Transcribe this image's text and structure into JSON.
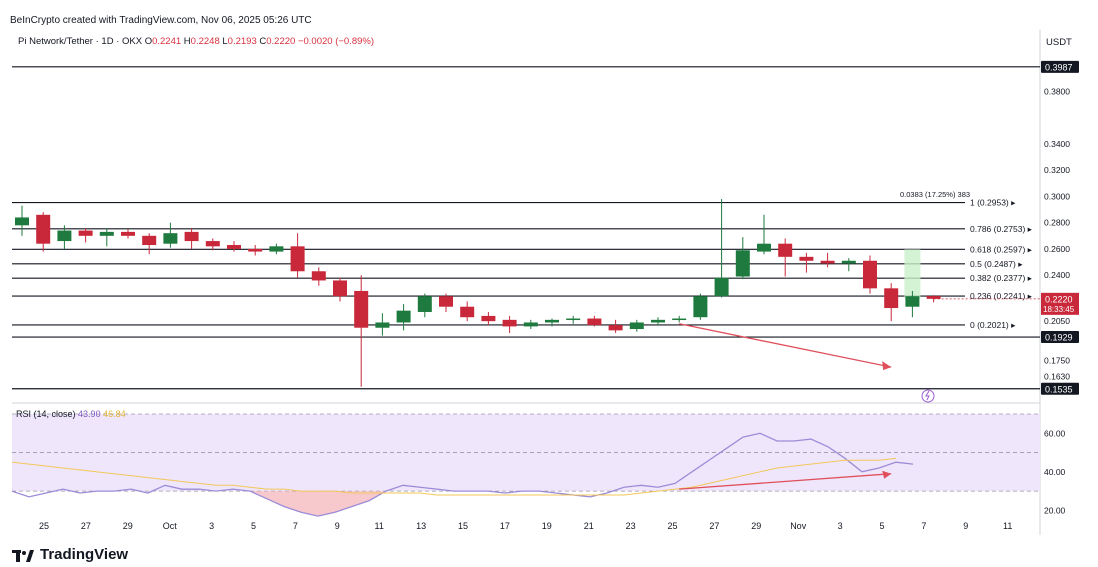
{
  "header": {
    "credit": "BeInCrypto created with TradingView.com, Nov 06, 2025 05:26 UTC",
    "symbol": "Pi Network/Tether · 1D · OKX",
    "ohlc": {
      "o_label": "O",
      "o": "0.2241",
      "h_label": "H",
      "h": "0.2248",
      "l_label": "L",
      "l": "0.2193",
      "c_label": "C",
      "c": "0.2220",
      "change": "−0.0020 (−0.89%)"
    },
    "currency": "USDT"
  },
  "brand": {
    "name": "TradingView"
  },
  "colors": {
    "up": "#1e7a3e",
    "down": "#c8283a",
    "rsi": "#9c8cd8",
    "rsi_ma": "#f3c75a",
    "arrow": "#e0505c",
    "band": "#efe6fb"
  },
  "chart_data": [
    {
      "type": "candlestick",
      "title": "Pi Network/Tether · 1D · OKX",
      "ylim": [
        0.148,
        0.41
      ],
      "x_ticks": [
        "25",
        "27",
        "29",
        "Oct",
        "3",
        "5",
        "7",
        "9",
        "11",
        "13",
        "15",
        "17",
        "19",
        "21",
        "23",
        "25",
        "27",
        "29",
        "Nov",
        "3",
        "5",
        "7",
        "9",
        "11"
      ],
      "y_ticks": [
        "0.3800",
        "0.3400",
        "0.3200",
        "0.3000",
        "0.2800",
        "0.2600",
        "0.2400",
        "0.2050",
        "0.1750",
        "0.1630"
      ],
      "price_badges": [
        {
          "label": "0.3987",
          "value": 0.3987
        },
        {
          "label": "0.1929",
          "value": 0.1929
        },
        {
          "label": "0.1535",
          "value": 0.1535
        }
      ],
      "current_price": {
        "label": "0.2220",
        "countdown": "18:33:45",
        "value": 0.222
      },
      "fib_levels": [
        {
          "label": "1 (0.2953)",
          "value": 0.2953
        },
        {
          "label": "0.786 (0.2753)",
          "value": 0.2753
        },
        {
          "label": "0.618 (0.2597)",
          "value": 0.2597
        },
        {
          "label": "0.5 (0.2487)",
          "value": 0.2487
        },
        {
          "label": "0.382 (0.2377)",
          "value": 0.2377
        },
        {
          "label": "0.236 (0.2241)",
          "value": 0.2241
        },
        {
          "label": "0 (0.2021)",
          "value": 0.2021
        }
      ],
      "measure_label": "0.0383 (17.25%) 383",
      "candles": [
        {
          "o": 0.278,
          "h": 0.293,
          "l": 0.27,
          "c": 0.284
        },
        {
          "o": 0.286,
          "h": 0.288,
          "l": 0.258,
          "c": 0.264
        },
        {
          "o": 0.266,
          "h": 0.278,
          "l": 0.26,
          "c": 0.274
        },
        {
          "o": 0.274,
          "h": 0.276,
          "l": 0.265,
          "c": 0.27
        },
        {
          "o": 0.27,
          "h": 0.276,
          "l": 0.262,
          "c": 0.273
        },
        {
          "o": 0.273,
          "h": 0.275,
          "l": 0.268,
          "c": 0.27
        },
        {
          "o": 0.27,
          "h": 0.272,
          "l": 0.256,
          "c": 0.263
        },
        {
          "o": 0.264,
          "h": 0.28,
          "l": 0.261,
          "c": 0.272
        },
        {
          "o": 0.273,
          "h": 0.276,
          "l": 0.26,
          "c": 0.266
        },
        {
          "o": 0.266,
          "h": 0.268,
          "l": 0.259,
          "c": 0.262
        },
        {
          "o": 0.263,
          "h": 0.266,
          "l": 0.258,
          "c": 0.26
        },
        {
          "o": 0.26,
          "h": 0.263,
          "l": 0.255,
          "c": 0.258
        },
        {
          "o": 0.258,
          "h": 0.264,
          "l": 0.256,
          "c": 0.262
        },
        {
          "o": 0.262,
          "h": 0.272,
          "l": 0.238,
          "c": 0.243
        },
        {
          "o": 0.243,
          "h": 0.246,
          "l": 0.232,
          "c": 0.236
        },
        {
          "o": 0.236,
          "h": 0.238,
          "l": 0.22,
          "c": 0.224
        },
        {
          "o": 0.228,
          "h": 0.24,
          "l": 0.155,
          "c": 0.2
        },
        {
          "o": 0.2,
          "h": 0.211,
          "l": 0.194,
          "c": 0.204
        },
        {
          "o": 0.204,
          "h": 0.218,
          "l": 0.198,
          "c": 0.213
        },
        {
          "o": 0.212,
          "h": 0.226,
          "l": 0.208,
          "c": 0.224
        },
        {
          "o": 0.224,
          "h": 0.226,
          "l": 0.212,
          "c": 0.216
        },
        {
          "o": 0.216,
          "h": 0.22,
          "l": 0.205,
          "c": 0.208
        },
        {
          "o": 0.209,
          "h": 0.212,
          "l": 0.202,
          "c": 0.205
        },
        {
          "o": 0.206,
          "h": 0.209,
          "l": 0.196,
          "c": 0.201
        },
        {
          "o": 0.201,
          "h": 0.206,
          "l": 0.199,
          "c": 0.204
        },
        {
          "o": 0.204,
          "h": 0.207,
          "l": 0.201,
          "c": 0.206
        },
        {
          "o": 0.206,
          "h": 0.209,
          "l": 0.203,
          "c": 0.207
        },
        {
          "o": 0.207,
          "h": 0.209,
          "l": 0.201,
          "c": 0.202
        },
        {
          "o": 0.202,
          "h": 0.206,
          "l": 0.196,
          "c": 0.198
        },
        {
          "o": 0.199,
          "h": 0.206,
          "l": 0.197,
          "c": 0.204
        },
        {
          "o": 0.204,
          "h": 0.208,
          "l": 0.202,
          "c": 0.206
        },
        {
          "o": 0.206,
          "h": 0.209,
          "l": 0.204,
          "c": 0.207
        },
        {
          "o": 0.208,
          "h": 0.226,
          "l": 0.206,
          "c": 0.224
        },
        {
          "o": 0.224,
          "h": 0.298,
          "l": 0.223,
          "c": 0.238
        },
        {
          "o": 0.239,
          "h": 0.269,
          "l": 0.237,
          "c": 0.259
        },
        {
          "o": 0.258,
          "h": 0.286,
          "l": 0.256,
          "c": 0.264
        },
        {
          "o": 0.264,
          "h": 0.268,
          "l": 0.239,
          "c": 0.254
        },
        {
          "o": 0.254,
          "h": 0.257,
          "l": 0.242,
          "c": 0.251
        },
        {
          "o": 0.251,
          "h": 0.257,
          "l": 0.246,
          "c": 0.249
        },
        {
          "o": 0.249,
          "h": 0.253,
          "l": 0.243,
          "c": 0.251
        },
        {
          "o": 0.251,
          "h": 0.255,
          "l": 0.226,
          "c": 0.23
        },
        {
          "o": 0.23,
          "h": 0.234,
          "l": 0.205,
          "c": 0.215
        },
        {
          "o": 0.216,
          "h": 0.228,
          "l": 0.208,
          "c": 0.224
        },
        {
          "o": 0.2241,
          "h": 0.2248,
          "l": 0.2193,
          "c": 0.222
        }
      ]
    },
    {
      "type": "line",
      "title": "RSI (14, close)",
      "values_label": [
        "43.90",
        "46.84"
      ],
      "ylim": [
        15,
        70
      ],
      "y_ticks": [
        "60.00",
        "40.00",
        "20.00"
      ],
      "bands": [
        30,
        50,
        70
      ],
      "series": [
        {
          "name": "RSI",
          "values": [
            30,
            27,
            29,
            31,
            29,
            30,
            30,
            31,
            29,
            33,
            31,
            31,
            30,
            31,
            30,
            26,
            22,
            19,
            17,
            19,
            22,
            25,
            30,
            33,
            32,
            31,
            30,
            30,
            30,
            29,
            30,
            30,
            29,
            28,
            27,
            29,
            32,
            33,
            32,
            34,
            40,
            46,
            52,
            58,
            60,
            56,
            56,
            57,
            53,
            47,
            40,
            42,
            45,
            44
          ]
        },
        {
          "name": "RSI-based MA",
          "values": [
            45,
            44,
            43,
            42,
            41,
            40,
            39,
            38,
            37,
            36,
            35,
            34,
            33,
            33,
            32,
            31,
            31,
            30,
            30,
            30,
            29,
            29,
            29,
            29,
            29,
            28,
            28,
            28,
            28,
            28,
            28,
            28,
            28,
            28,
            28,
            28,
            28,
            29,
            30,
            31,
            32,
            34,
            36,
            38,
            40,
            42,
            43,
            44,
            45,
            46,
            46,
            46,
            47
          ]
        }
      ]
    }
  ]
}
